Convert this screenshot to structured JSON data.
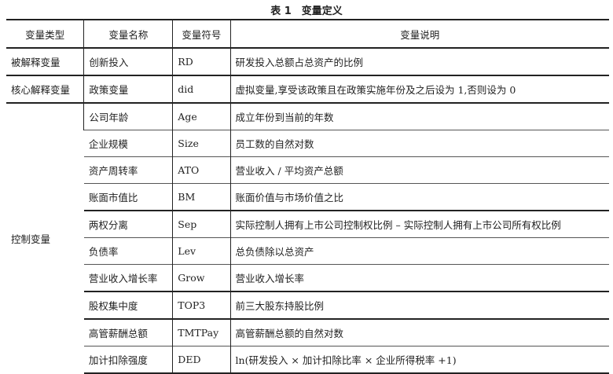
{
  "title": "表 1　变量定义",
  "headers": [
    "变量类型",
    "变量名称",
    "变量符号",
    "变量说明"
  ],
  "rows": [
    {
      "type": "被解释变量",
      "name": "创新投入",
      "symbol": "RD",
      "desc": "研发投入总额占总资产的比例"
    },
    {
      "type": "核心解释变量",
      "name": "政策变量",
      "symbol": "did",
      "desc": "虚拟变量,享受该政策且在政策实施年份及之后设为 1,否则设为 0"
    }
  ],
  "control": {
    "type": "控制变量",
    "rows": [
      {
        "name": "公司年龄",
        "symbol": "Age",
        "desc": "成立年份到当前的年数"
      },
      {
        "name": "企业规模",
        "symbol": "Size",
        "desc": "员工数的自然对数"
      },
      {
        "name": "资产周转率",
        "symbol": "ATO",
        "desc": "营业收入 / 平均资产总额"
      },
      {
        "name": "账面市值比",
        "symbol": "BM",
        "desc": "账面价值与市场价值之比"
      },
      {
        "name": "两权分离",
        "symbol": "Sep",
        "desc": "实际控制人拥有上市公司控制权比例 – 实际控制人拥有上市公司所有权比例"
      },
      {
        "name": "负债率",
        "symbol": "Lev",
        "desc": "总负债除以总资产"
      },
      {
        "name": "营业收入增长率",
        "symbol": "Grow",
        "desc": "营业收入增长率"
      },
      {
        "name": "股权集中度",
        "symbol": "TOP3",
        "desc": "前三大股东持股比例"
      },
      {
        "name": "高管薪酬总额",
        "symbol": "TMTPay",
        "desc": "高管薪酬总额的自然对数"
      },
      {
        "name": "加计扣除强度",
        "symbol": "DED",
        "desc": "ln(研发投入 × 加计扣除比率 × 企业所得税率 +1)"
      }
    ]
  }
}
